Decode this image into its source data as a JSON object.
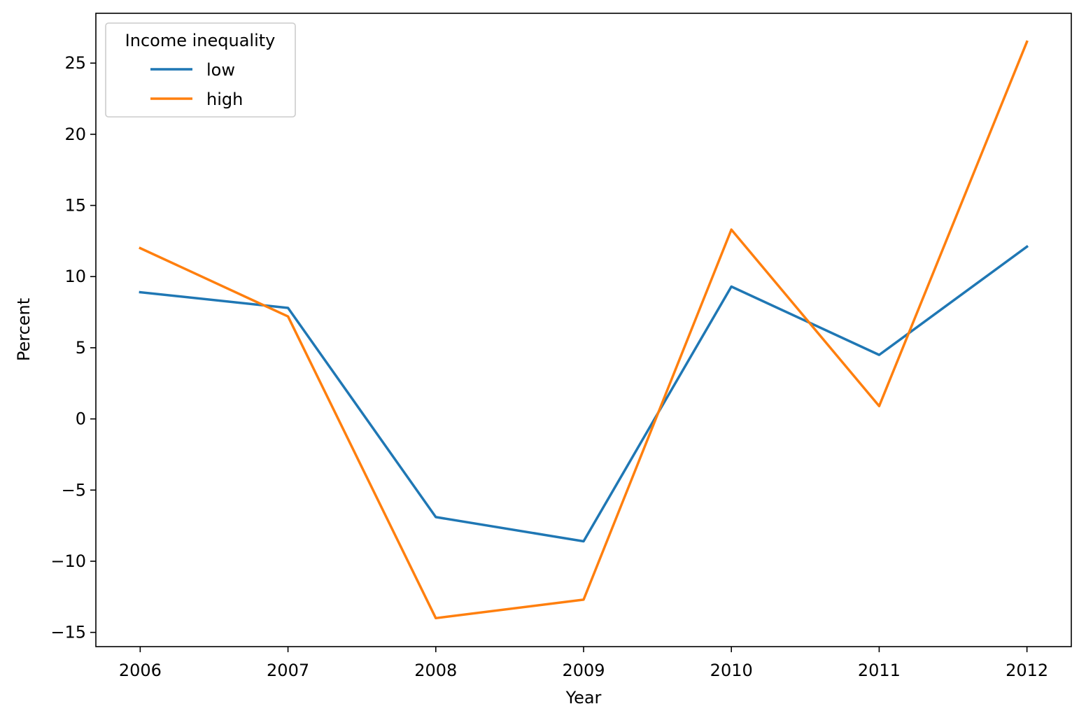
{
  "chart_data": {
    "type": "line",
    "title": "",
    "xlabel": "Year",
    "ylabel": "Percent",
    "x": [
      2006,
      2007,
      2008,
      2009,
      2010,
      2011,
      2012
    ],
    "xlim": [
      2005.7,
      2012.3
    ],
    "ylim": [
      -16,
      28.5
    ],
    "yticks": [
      -15,
      -10,
      -5,
      0,
      5,
      10,
      15,
      20,
      25
    ],
    "ytick_labels": [
      "−15",
      "−10",
      "−5",
      "0",
      "5",
      "10",
      "15",
      "20",
      "25"
    ],
    "xtick_labels": [
      "2006",
      "2007",
      "2008",
      "2009",
      "2010",
      "2011",
      "2012"
    ],
    "grid": false,
    "legend": {
      "title": "Income inequality",
      "placement": "top-left"
    },
    "series": [
      {
        "name": "low",
        "color": "#1f77b4",
        "values": [
          8.9,
          7.8,
          -6.9,
          -8.6,
          9.3,
          4.5,
          12.1
        ]
      },
      {
        "name": "high",
        "color": "#ff7f0e",
        "values": [
          12.0,
          7.2,
          -14.0,
          -12.7,
          13.3,
          0.9,
          26.5
        ]
      }
    ]
  }
}
